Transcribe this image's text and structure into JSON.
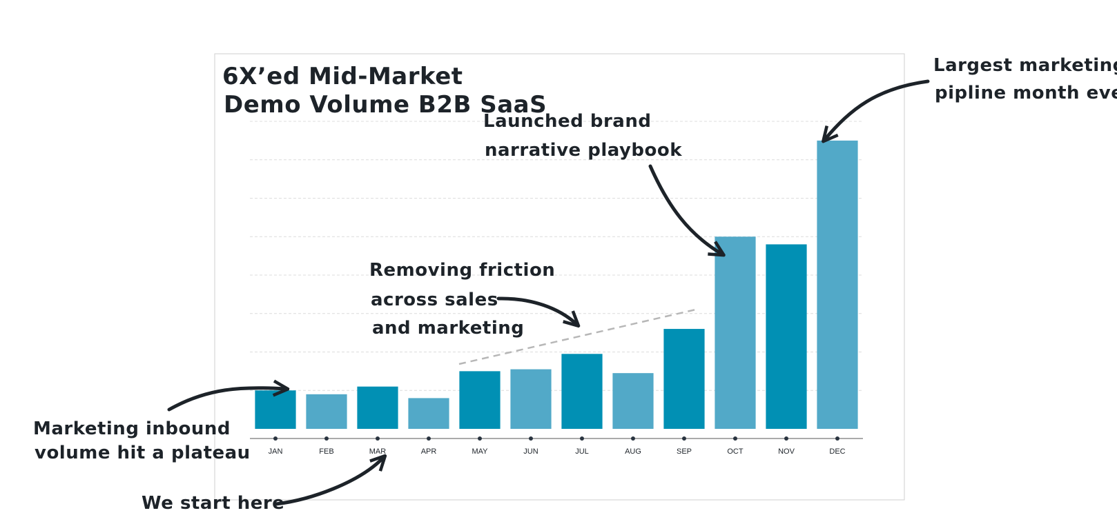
{
  "chart_data": {
    "type": "bar",
    "title_lines": [
      "6X’ed Mid-Market",
      "Demo Volume B2B SaaS"
    ],
    "categories": [
      "JAN",
      "FEB",
      "MAR",
      "APR",
      "MAY",
      "JUN",
      "JUL",
      "AUG",
      "SEP",
      "OCT",
      "NOV",
      "DEC"
    ],
    "values": [
      1.0,
      0.9,
      1.1,
      0.8,
      1.5,
      1.55,
      1.95,
      1.45,
      2.6,
      5.0,
      4.8,
      7.5
    ],
    "ylim": [
      0,
      8
    ],
    "grid": true,
    "xlabel": "",
    "ylabel": "",
    "bar_colors": [
      "#0190b4",
      "#52a9c8",
      "#0190b4",
      "#52a9c8",
      "#0190b4",
      "#52a9c8",
      "#0190b4",
      "#52a9c8",
      "#0190b4",
      "#52a9c8",
      "#0190b4",
      "#52a9c8"
    ],
    "annotations": [
      {
        "id": "plateau",
        "lines": [
          "Marketing inbound",
          "volume hit a plateau"
        ]
      },
      {
        "id": "start",
        "lines": [
          "We start here"
        ]
      },
      {
        "id": "friction",
        "lines": [
          "Removing friction",
          "across sales",
          "and marketing"
        ]
      },
      {
        "id": "brand",
        "lines": [
          "Launched brand",
          "narrative playbook"
        ]
      },
      {
        "id": "largest",
        "lines": [
          "Largest marketing",
          "pipline month ever"
        ]
      }
    ]
  },
  "colors": {
    "ink": "#1d2329",
    "grid": "#dcdcdc",
    "trend": "#b7b7b7",
    "frame": "#cfcfcf"
  }
}
